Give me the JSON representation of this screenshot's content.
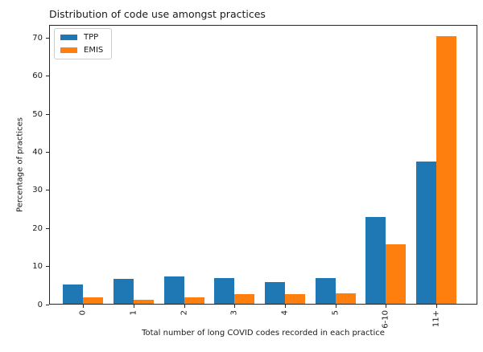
{
  "chart_data": {
    "type": "bar",
    "title": "Distribution of code use amongst practices",
    "xlabel": "Total number of long COVID codes recorded in each practice",
    "ylabel": "Percentage of practices",
    "categories": [
      "0",
      "1",
      "2",
      "3",
      "4",
      "5",
      "6-10",
      "11+"
    ],
    "series": [
      {
        "name": "TPP",
        "color": "#1f77b4",
        "values": [
          5.3,
          6.8,
          7.5,
          6.9,
          6.0,
          7.0,
          23.1,
          37.5
        ]
      },
      {
        "name": "EMIS",
        "color": "#ff7f0e",
        "values": [
          1.9,
          1.3,
          2.0,
          2.8,
          2.8,
          3.0,
          15.8,
          70.5
        ]
      }
    ],
    "ylim": [
      0,
      73.5
    ],
    "yticks": [
      0,
      10,
      20,
      30,
      40,
      50,
      60,
      70
    ],
    "xtick_rotation": 90,
    "grid": false,
    "legend_position": "upper left"
  }
}
